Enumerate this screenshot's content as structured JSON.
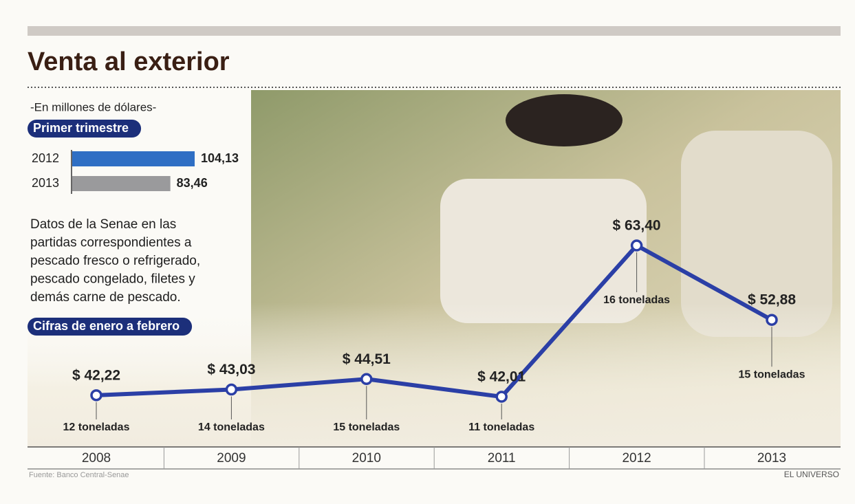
{
  "title": "Venta al exterior",
  "subtitle": "-En millones de dólares-",
  "note": [
    "Datos de la Senae en las",
    "partidas correspondientes a",
    "pescado fresco o refrigerado,",
    "pescado congelado, filetes y",
    "demás carne de pescado."
  ],
  "source": "Fuente: Banco Central-Senae",
  "credit": "EL UNIVERSO",
  "chart_data": [
    {
      "type": "bar",
      "title": "Primer trimestre",
      "categories": [
        "2012",
        "2013"
      ],
      "values": [
        104.13,
        83.46
      ],
      "value_labels": [
        "104,13",
        "83,46"
      ],
      "colors": [
        "#2f6fc4",
        "#9a9a9c"
      ]
    },
    {
      "type": "line",
      "title": "Cifras de enero a febrero",
      "categories": [
        "2008",
        "2009",
        "2010",
        "2011",
        "2012",
        "2013"
      ],
      "values": [
        42.22,
        43.03,
        44.51,
        42.01,
        63.4,
        52.88
      ],
      "value_labels": [
        "$ 42,22",
        "$ 43,03",
        "$ 44,51",
        "$ 42,01",
        "$ 63,40",
        "$ 52,88"
      ],
      "annotations": [
        "12 toneladas",
        "14 toneladas",
        "15 toneladas",
        "11 toneladas",
        "16 toneladas",
        "15 toneladas"
      ],
      "color": "#2b3fa6"
    }
  ]
}
